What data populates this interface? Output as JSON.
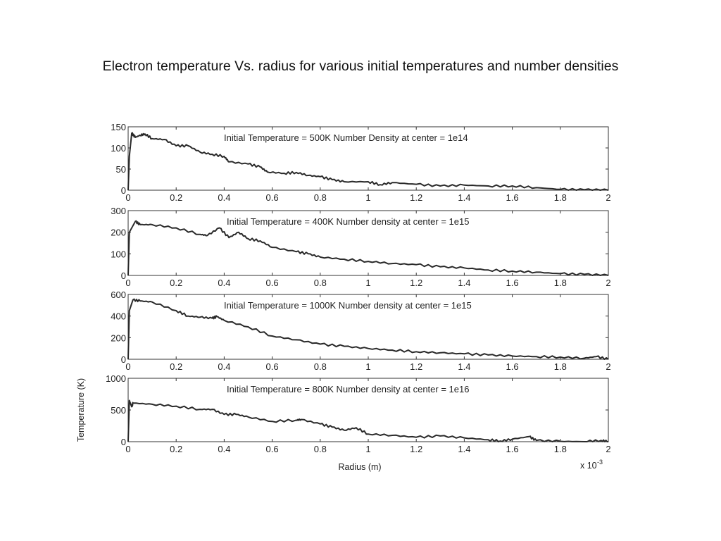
{
  "title": "Electron temperature Vs. radius for various initial temperatures and number densities",
  "chart_data": [
    {
      "type": "line",
      "annotation": "Initial Temperature = 500K   Number Density at center = 1e14",
      "xlim": [
        0,
        2
      ],
      "ylim": [
        0,
        150
      ],
      "xticks": [
        "0",
        "0.2",
        "0.4",
        "0.6",
        "0.8",
        "1",
        "1.2",
        "1.4",
        "1.6",
        "1.8",
        "2"
      ],
      "yticks": [
        "0",
        "50",
        "100",
        "150"
      ],
      "x": [
        0,
        0.005,
        0.015,
        0.03,
        0.05,
        0.07,
        0.1,
        0.15,
        0.2,
        0.25,
        0.3,
        0.35,
        0.4,
        0.42,
        0.5,
        0.55,
        0.58,
        0.65,
        0.7,
        0.75,
        0.8,
        0.85,
        0.9,
        1.0,
        1.05,
        1.1,
        1.2,
        1.3,
        1.4,
        1.5,
        1.6,
        1.7,
        1.8,
        1.9,
        2.0
      ],
      "y": [
        0,
        80,
        135,
        125,
        130,
        133,
        122,
        120,
        105,
        105,
        90,
        85,
        80,
        67,
        62,
        55,
        43,
        40,
        42,
        35,
        32,
        25,
        20,
        20,
        13,
        18,
        14,
        10,
        12,
        10,
        10,
        6,
        2,
        1,
        0
      ]
    },
    {
      "type": "line",
      "annotation": "Initial Temperature = 400K   Number density at center = 1e15",
      "xlim": [
        0,
        2
      ],
      "ylim": [
        0,
        300
      ],
      "xticks": [
        "0",
        "0.2",
        "0.4",
        "0.6",
        "0.8",
        "1",
        "1.2",
        "1.4",
        "1.6",
        "1.8",
        "2"
      ],
      "yticks": [
        "0",
        "100",
        "200",
        "300"
      ],
      "x": [
        0,
        0.005,
        0.03,
        0.05,
        0.1,
        0.2,
        0.3,
        0.33,
        0.38,
        0.42,
        0.46,
        0.5,
        0.55,
        0.6,
        0.7,
        0.75,
        0.8,
        0.9,
        1.0,
        1.1,
        1.2,
        1.3,
        1.4,
        1.5,
        1.6,
        1.7,
        1.8,
        1.9,
        2.0
      ],
      "y": [
        0,
        200,
        250,
        235,
        235,
        220,
        190,
        185,
        220,
        175,
        200,
        170,
        160,
        130,
        110,
        100,
        85,
        75,
        65,
        55,
        50,
        40,
        35,
        25,
        20,
        15,
        8,
        5,
        0
      ]
    },
    {
      "type": "line",
      "annotation": "Initial Temperature = 1000K   Number density at center = 1e15",
      "xlim": [
        0,
        2
      ],
      "ylim": [
        0,
        600
      ],
      "xticks": [
        "0",
        "0.2",
        "0.4",
        "0.6",
        "0.8",
        "1",
        "1.2",
        "1.4",
        "1.6",
        "1.8",
        "2"
      ],
      "yticks": [
        "0",
        "200",
        "400",
        "600"
      ],
      "x": [
        0,
        0.005,
        0.02,
        0.05,
        0.1,
        0.2,
        0.25,
        0.3,
        0.35,
        0.37,
        0.4,
        0.5,
        0.6,
        0.7,
        0.8,
        0.9,
        1.0,
        1.1,
        1.2,
        1.3,
        1.4,
        1.5,
        1.6,
        1.7,
        1.8,
        1.9,
        1.95,
        2.0
      ],
      "y": [
        0,
        450,
        550,
        540,
        530,
        450,
        400,
        390,
        380,
        395,
        360,
        300,
        215,
        180,
        140,
        120,
        100,
        85,
        70,
        60,
        50,
        40,
        30,
        25,
        20,
        10,
        25,
        0
      ]
    },
    {
      "type": "line",
      "annotation": "Initial Temperature = 800K   Number density at center = 1e16",
      "xlim": [
        0,
        2
      ],
      "ylim": [
        0,
        1000
      ],
      "xticks": [
        "0",
        "0.2",
        "0.4",
        "0.6",
        "0.8",
        "1",
        "1.2",
        "1.4",
        "1.6",
        "1.8",
        "2"
      ],
      "yticks": [
        "0",
        "500",
        "1000"
      ],
      "xlabel": "Radius (m)",
      "ylabel": "Temperature (K)",
      "x_multiplier": "x 10",
      "x_multiplier_exp": "-3",
      "x": [
        0,
        0.005,
        0.015,
        0.02,
        0.1,
        0.2,
        0.3,
        0.35,
        0.4,
        0.45,
        0.5,
        0.6,
        0.7,
        0.72,
        0.8,
        0.85,
        0.9,
        0.95,
        1.0,
        1.1,
        1.2,
        1.3,
        1.4,
        1.5,
        1.55,
        1.6,
        1.67,
        1.7,
        1.8,
        1.9,
        1.97,
        2.0
      ],
      "y": [
        0,
        650,
        550,
        610,
        590,
        560,
        510,
        510,
        430,
        430,
        390,
        320,
        340,
        350,
        280,
        230,
        180,
        220,
        120,
        100,
        70,
        90,
        60,
        30,
        10,
        40,
        80,
        20,
        5,
        0,
        20,
        0
      ]
    }
  ],
  "colors": {
    "line": "#2a2a2a",
    "axes": "#333333",
    "background": "#ffffff"
  }
}
